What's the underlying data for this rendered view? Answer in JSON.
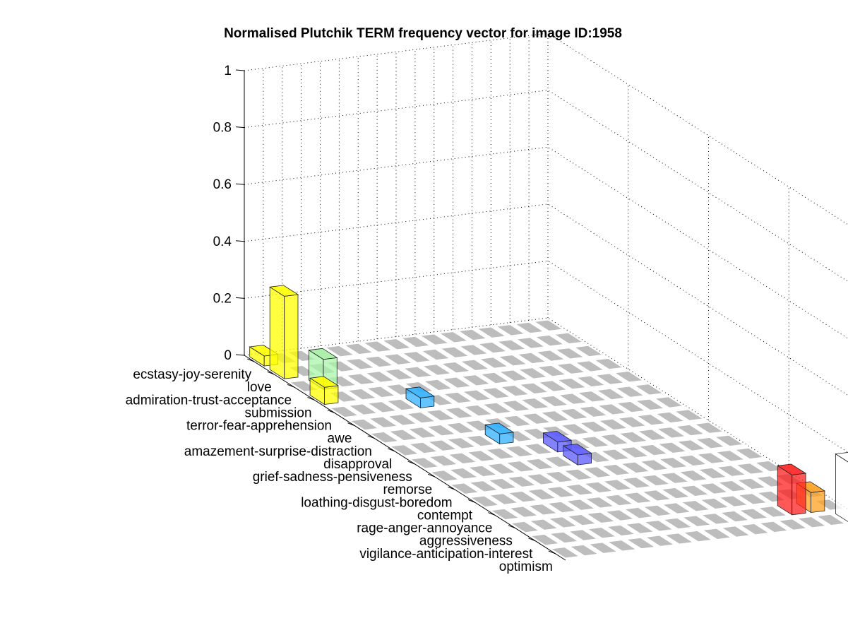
{
  "chart_data": {
    "type": "bar",
    "title": "Normalised Plutchik TERM frequency vector for image ID:1958",
    "categories": [
      "ecstasy-joy-serenity",
      "love",
      "admiration-trust-acceptance",
      "submission",
      "terror-fear-apprehension",
      "awe",
      "amazement-surprise-distraction",
      "disapproval",
      "grief-sadness-pensiveness",
      "remorse",
      "loathing-disgust-boredom",
      "contempt",
      "rage-anger-annoyance",
      "aggressiveness",
      "vigilance-anticipation-interest",
      "optimism"
    ],
    "series": [
      {
        "values": [
          0.035,
          0.29,
          0.0,
          0.06,
          0.0,
          0.0,
          0.0,
          0.0,
          0.0,
          0.0,
          0.0,
          0.0,
          0.0,
          0.0,
          0.0,
          0.0
        ]
      },
      {
        "values": [
          0.0,
          0.0,
          0.105,
          0.0,
          0.0,
          0.0,
          0.0,
          0.0,
          0.0,
          0.0,
          0.0,
          0.0,
          0.0,
          0.0,
          0.0,
          0.0
        ]
      },
      {
        "values": [
          0.0,
          0.0,
          0.0,
          0.0,
          0.0,
          0.0,
          0.0,
          0.0,
          0.0,
          0.0,
          0.0,
          0.0,
          0.0,
          0.0,
          0.0,
          0.0
        ]
      },
      {
        "values": [
          0.0,
          0.0,
          0.0,
          0.0,
          0.0,
          0.0,
          0.0,
          0.0,
          0.0,
          0.0,
          0.0,
          0.0,
          0.0,
          0.0,
          0.0,
          0.0
        ]
      },
      {
        "values": [
          0.0,
          0.0,
          0.0,
          0.0,
          0.035,
          0.0,
          0.0,
          0.0,
          0.0,
          0.0,
          0.0,
          0.0,
          0.0,
          0.0,
          0.0,
          0.0
        ]
      },
      {
        "values": [
          0.0,
          0.0,
          0.0,
          0.0,
          0.0,
          0.0,
          0.0,
          0.035,
          0.0,
          0.0,
          0.0,
          0.0,
          0.0,
          0.0,
          0.0,
          0.0
        ]
      },
      {
        "values": [
          0.0,
          0.0,
          0.0,
          0.0,
          0.0,
          0.0,
          0.0,
          0.0,
          0.0,
          0.0,
          0.0,
          0.0,
          0.0,
          0.0,
          0.0,
          0.0
        ]
      },
      {
        "values": [
          0.0,
          0.0,
          0.0,
          0.0,
          0.0,
          0.0,
          0.0,
          0.0,
          0.035,
          0.035,
          0.0,
          0.0,
          0.0,
          0.0,
          0.0,
          0.0
        ]
      },
      {
        "values": [
          0.0,
          0.0,
          0.0,
          0.0,
          0.0,
          0.0,
          0.0,
          0.0,
          0.0,
          0.0,
          0.0,
          0.0,
          0.0,
          0.0,
          0.0,
          0.0
        ]
      },
      {
        "values": [
          0.0,
          0.0,
          0.0,
          0.0,
          0.0,
          0.0,
          0.0,
          0.0,
          0.0,
          0.0,
          0.0,
          0.0,
          0.0,
          0.0,
          0.0,
          0.0
        ]
      },
      {
        "values": [
          0.0,
          0.0,
          0.0,
          0.0,
          0.0,
          0.0,
          0.0,
          0.0,
          0.0,
          0.0,
          0.0,
          0.0,
          0.0,
          0.0,
          0.0,
          0.0
        ]
      },
      {
        "values": [
          0.0,
          0.0,
          0.0,
          0.0,
          0.0,
          0.0,
          0.0,
          0.0,
          0.0,
          0.0,
          0.0,
          0.0,
          0.0,
          0.0,
          0.0,
          0.0
        ]
      },
      {
        "values": [
          0.0,
          0.0,
          0.0,
          0.0,
          0.0,
          0.0,
          0.0,
          0.0,
          0.0,
          0.0,
          0.0,
          0.0,
          0.0,
          0.0,
          0.0,
          0.0
        ]
      },
      {
        "values": [
          0.0,
          0.0,
          0.0,
          0.0,
          0.0,
          0.0,
          0.0,
          0.0,
          0.0,
          0.0,
          0.0,
          0.0,
          0.0,
          0.0,
          0.14,
          0.0
        ]
      },
      {
        "values": [
          0.0,
          0.0,
          0.0,
          0.0,
          0.0,
          0.0,
          0.0,
          0.0,
          0.0,
          0.0,
          0.0,
          0.0,
          0.0,
          0.0,
          0.07,
          0.0
        ]
      },
      {
        "values": [
          0.0,
          0.0,
          0.0,
          0.0,
          0.0,
          0.0,
          0.0,
          0.0,
          0.0,
          0.0,
          0.0,
          0.0,
          0.0,
          0.0,
          0.0,
          0.21
        ]
      }
    ],
    "zlim": [
      0,
      1
    ],
    "zticks": [
      "0",
      "0.2",
      "0.4",
      "0.6",
      "0.8",
      "1"
    ],
    "grid": true,
    "colors": [
      "#ffff00",
      "#aaf5aa",
      "#5aba80",
      "#5aba80",
      "#30b0ff",
      "#30b0ff",
      "#5a5aff",
      "#5a5aff",
      "#7a4aff",
      "#7a4aff",
      "#ffffff",
      "#ffffff",
      "#ff2020",
      "#ff2020",
      "#ffa020",
      "#ffffff"
    ],
    "zero_color": "#bdbdbd"
  }
}
